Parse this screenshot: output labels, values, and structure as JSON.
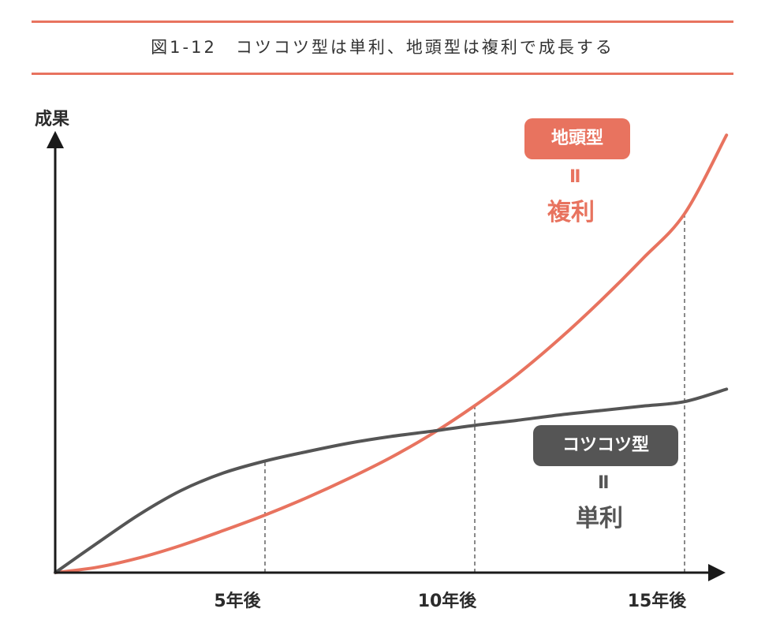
{
  "figure": {
    "title": "図1-12　コツコツ型は単利、地頭型は複利で成長する",
    "rule_color": "#e8735f"
  },
  "chart_data": {
    "type": "line",
    "ylabel": "成果",
    "xlabel": "",
    "x_ticks": [
      {
        "x": 5,
        "label": "5年後"
      },
      {
        "x": 10,
        "label": "10年後"
      },
      {
        "x": 15,
        "label": "15年後"
      }
    ],
    "xlim": [
      0,
      16
    ],
    "ylim": [
      0,
      100
    ],
    "grid": false,
    "series": [
      {
        "name": "地頭型",
        "color": "#e8735f",
        "x": [
          0,
          1,
          2,
          3,
          4,
          5,
          6,
          7,
          8,
          9,
          10,
          11,
          12,
          13,
          14,
          15,
          16
        ],
        "y": [
          0,
          1.2,
          3.3,
          6.1,
          9.4,
          12.9,
          16.8,
          21.1,
          25.8,
          31.2,
          37.4,
          44.3,
          52.2,
          60.9,
          70.3,
          80.4,
          98
        ]
      },
      {
        "name": "コツコツ型",
        "color": "#555555",
        "x": [
          0,
          1,
          2,
          3,
          4,
          5,
          6,
          7,
          8,
          9,
          10,
          11,
          12,
          13,
          14,
          15,
          16
        ],
        "y": [
          0,
          6.6,
          13.0,
          18.4,
          22.3,
          25.0,
          27.1,
          29.0,
          30.5,
          31.7,
          33.0,
          34.1,
          35.3,
          36.3,
          37.3,
          38.3,
          41.1
        ]
      }
    ],
    "annotations": [
      {
        "series": "地頭型",
        "badge": "地頭型",
        "eq": "Ⅱ",
        "desc": "複利",
        "color": "#e8735f",
        "desc_color": "#e8735f"
      },
      {
        "series": "コツコツ型",
        "badge": "コツコツ型",
        "eq": "Ⅱ",
        "desc": "単利",
        "color": "#555555",
        "desc_color": "#555555"
      }
    ]
  }
}
